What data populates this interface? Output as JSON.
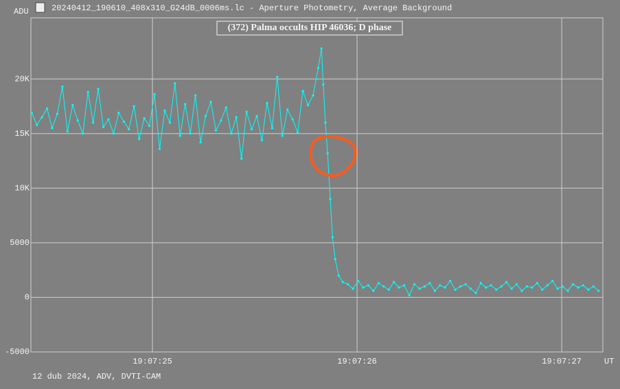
{
  "chart_data": {
    "type": "line",
    "window_title": "20240412_190610_408x310_G24dB_0006ms.lc - Aperture Photometry, Average Background",
    "title": "(372) Palma occults HIP 46036; D phase",
    "y_label": "ADU",
    "x_label": "UT",
    "footer": "12 dub 2024, ADV, DVTI-CAM",
    "xlim": [
      24.406,
      27.201
    ],
    "ylim": [
      -5000,
      25600
    ],
    "xticks": [
      {
        "value": 25,
        "label": "19:07:25"
      },
      {
        "value": 26,
        "label": "19:07:26"
      },
      {
        "value": 27,
        "label": "19:07:27"
      }
    ],
    "yticks": [
      -5000,
      0,
      5000,
      {
        "value": 10000,
        "label": "10K"
      },
      {
        "value": 15000,
        "label": "15K"
      },
      {
        "value": 20000,
        "label": "20K"
      }
    ],
    "grid": true,
    "color": "#00ffff",
    "x": [
      24.41,
      24.435,
      24.46,
      24.485,
      24.51,
      24.535,
      24.56,
      24.585,
      24.61,
      24.635,
      24.66,
      24.685,
      24.71,
      24.735,
      24.76,
      24.785,
      24.81,
      24.835,
      24.86,
      24.885,
      24.91,
      24.935,
      24.96,
      24.985,
      25.01,
      25.035,
      25.06,
      25.085,
      25.11,
      25.135,
      25.16,
      25.185,
      25.21,
      25.235,
      25.26,
      25.285,
      25.31,
      25.335,
      25.36,
      25.385,
      25.41,
      25.435,
      25.46,
      25.485,
      25.51,
      25.535,
      25.56,
      25.585,
      25.61,
      25.635,
      25.66,
      25.685,
      25.71,
      25.735,
      25.76,
      25.785,
      25.81,
      25.826,
      25.835,
      25.845,
      25.856,
      25.869,
      25.88,
      25.893,
      25.91,
      25.93,
      25.955,
      25.98,
      26.005,
      26.03,
      26.055,
      26.08,
      26.105,
      26.13,
      26.155,
      26.18,
      26.205,
      26.23,
      26.255,
      26.28,
      26.305,
      26.33,
      26.355,
      26.38,
      26.405,
      26.43,
      26.455,
      26.48,
      26.505,
      26.53,
      26.555,
      26.58,
      26.605,
      26.63,
      26.655,
      26.68,
      26.705,
      26.73,
      26.755,
      26.78,
      26.805,
      26.83,
      26.855,
      26.88,
      26.905,
      26.93,
      26.955,
      26.98,
      27.005,
      27.03,
      27.055,
      27.08,
      27.105,
      27.13,
      27.155,
      27.18
    ],
    "values": [
      16900,
      15800,
      16500,
      17300,
      15500,
      16800,
      19300,
      15200,
      17600,
      16200,
      15000,
      18800,
      16000,
      19100,
      15600,
      16300,
      15000,
      16900,
      16100,
      15400,
      17500,
      14500,
      16400,
      15700,
      18600,
      13600,
      17100,
      16000,
      19600,
      14800,
      17700,
      15000,
      18500,
      14200,
      16600,
      17900,
      15300,
      16200,
      17400,
      15000,
      16500,
      12700,
      17000,
      15400,
      16600,
      14400,
      17800,
      15500,
      20200,
      14800,
      17200,
      16300,
      15100,
      18900,
      17600,
      18500,
      21000,
      22800,
      19500,
      16000,
      13200,
      9000,
      5500,
      3500,
      2000,
      1400,
      1200,
      800,
      1500,
      900,
      1100,
      600,
      1300,
      1000,
      700,
      1400,
      900,
      1100,
      200,
      1200,
      800,
      1000,
      1300,
      600,
      1100,
      900,
      1500,
      700,
      1000,
      1200,
      800,
      400,
      1300,
      900,
      1100,
      700,
      1000,
      1400,
      800,
      1200,
      600,
      1000,
      900,
      1300,
      700,
      1100,
      1500,
      800,
      1000,
      600,
      1200,
      900,
      1100,
      700,
      1000,
      600
    ]
  }
}
